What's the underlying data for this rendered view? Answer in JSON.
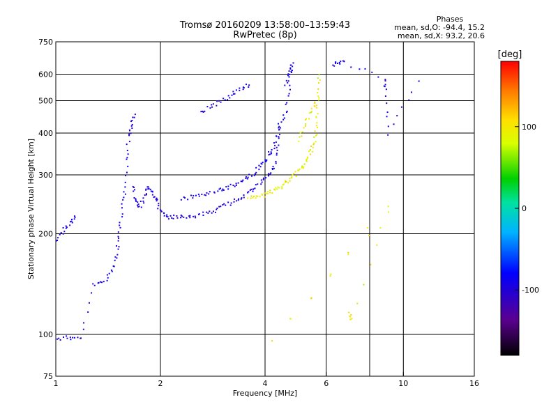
{
  "chart_data": {
    "type": "scatter",
    "title": "Tromsø 20160209 13:58:00–13:59:43",
    "subtitle": "RwPretec (8p)",
    "xlabel": "Frequency [MHz]",
    "ylabel": "Stationary phase Virtual Height [km]",
    "xscale": "log2",
    "yscale": "log",
    "xlim": [
      1,
      16
    ],
    "ylim": [
      75,
      750
    ],
    "xticks": [
      "1",
      "2",
      "4",
      "6",
      "10",
      "16"
    ],
    "yticks": [
      "75",
      "100",
      "200",
      "300",
      "400",
      "500",
      "600",
      "750"
    ],
    "x_gridlines": [
      2,
      4,
      6,
      8,
      10
    ],
    "y_gridlines": [
      100,
      200,
      300,
      400,
      500,
      600
    ],
    "stats": {
      "heading": "Phases",
      "o_line": "mean, sd,O: -94.4, 15.2",
      "x_line": "mean, sd,X: 93.2, 20.6"
    },
    "colorbar": {
      "label": "[deg]",
      "range": [
        -180,
        180
      ],
      "ticks": [
        "100",
        "0",
        "-100"
      ],
      "tick_values": [
        100,
        0,
        -100
      ],
      "colormap": "rainbow (black→violet→blue→cyan→green→yellow→red)"
    },
    "series": [
      {
        "mode": "O",
        "mean_phase": -94.4,
        "segments": [
          {
            "x": [
              1.01,
              1.1,
              1.18,
              1.28,
              1.38,
              1.46,
              1.5,
              1.52,
              1.55,
              1.58,
              1.6,
              1.62,
              1.65,
              1.68
            ],
            "y": [
              97,
              98,
              97,
              140,
              145,
              155,
              175,
              195,
              230,
              270,
              330,
              390,
              420,
              450
            ]
          },
          {
            "x": [
              1.01,
              1.05,
              1.1,
              1.14
            ],
            "y": [
              190,
              205,
              215,
              225
            ]
          },
          {
            "x": [
              1.66,
              1.7,
              1.75,
              1.8,
              1.85,
              1.9,
              1.95,
              2.0,
              2.1,
              2.2,
              2.35,
              2.5,
              2.7,
              2.9,
              3.1,
              3.3,
              3.5,
              3.7,
              3.9,
              4.1,
              4.25,
              4.35,
              4.4
            ],
            "y": [
              280,
              250,
              240,
              260,
              275,
              265,
              250,
              235,
              225,
              224,
              224,
              226,
              230,
              236,
              244,
              252,
              262,
              272,
              284,
              298,
              320,
              360,
              430
            ]
          },
          {
            "x": [
              2.3,
              2.5,
              2.7,
              2.9,
              3.1,
              3.3,
              3.5,
              3.7,
              3.85,
              4.0,
              4.15,
              4.3,
              4.45,
              4.6,
              4.72
            ],
            "y": [
              255,
              258,
              262,
              268,
              274,
              282,
              292,
              302,
              315,
              330,
              350,
              380,
              420,
              470,
              560
            ]
          },
          {
            "x": [
              2.6,
              2.8,
              3.0,
              3.2,
              3.4,
              3.6
            ],
            "y": [
              460,
              480,
              500,
              520,
              540,
              560
            ]
          },
          {
            "x": [
              4.6,
              4.7,
              4.75,
              4.8
            ],
            "y": [
              560,
              600,
              620,
              650
            ]
          },
          {
            "x": [
              6.3,
              6.5,
              6.8,
              8.8,
              8.9,
              9.05,
              11.0
            ],
            "y": [
              640,
              645,
              650,
              580,
              540,
              400,
              570
            ]
          }
        ]
      },
      {
        "mode": "X",
        "mean_phase": 93.2,
        "segments": [
          {
            "x": [
              3.6,
              3.8,
              4.0,
              4.2,
              4.4,
              4.6,
              4.8,
              5.0,
              5.2,
              5.35,
              5.5,
              5.6,
              5.65,
              5.7,
              5.72
            ],
            "y": [
              255,
              258,
              262,
              268,
              275,
              285,
              295,
              308,
              322,
              340,
              365,
              400,
              450,
              520,
              600
            ]
          },
          {
            "x": [
              5.0,
              5.2,
              5.4,
              5.6
            ],
            "y": [
              380,
              420,
              460,
              500
            ]
          },
          {
            "x": [
              7.0,
              7.1,
              9.0,
              4.2,
              9.0
            ],
            "y": [
              115,
              110,
              240,
              95,
              230
            ]
          }
        ]
      }
    ]
  }
}
